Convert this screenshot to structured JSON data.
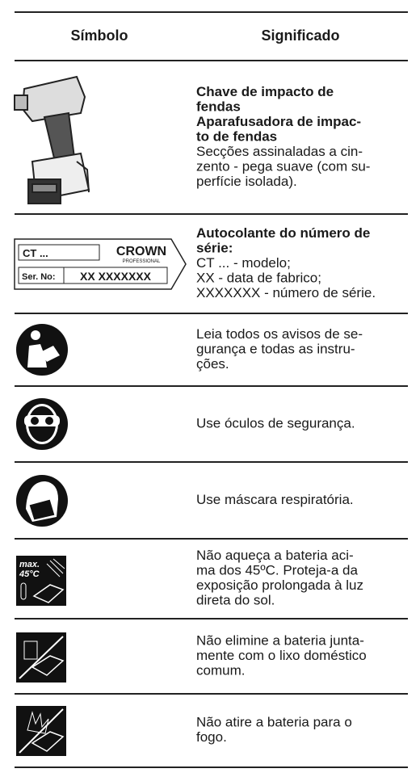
{
  "header": {
    "symbol": "Símbolo",
    "meaning": "Significado"
  },
  "rows": [
    {
      "bold_lines": [
        "Chave de impacto de",
        "fendas",
        "Aparafusadora de impac-",
        "to de fendas"
      ],
      "lines": [
        "Secções assinaladas a cin-",
        "zento - pega suave (com su-",
        "perfície isolada)."
      ]
    },
    {
      "label": {
        "model": "CT ...",
        "brand": "CROWN",
        "brand_sub": "PROFESSIONAL",
        "serial_label": "Ser. No:",
        "serial": "XX XXXXXXX"
      },
      "bold_lines": [
        "Autocolante do número de",
        "série:"
      ],
      "lines": [
        "CT ... - modelo;",
        "XX - data de fabrico;",
        "XXXXXXX - número de série."
      ]
    },
    {
      "lines": [
        "Leia todos os avisos de se-",
        "gurança e todas as instru-",
        "ções."
      ]
    },
    {
      "lines": [
        "Use óculos de segurança."
      ]
    },
    {
      "lines": [
        "Use máscara respiratória."
      ]
    },
    {
      "icon_text": [
        "max.",
        "45°C"
      ],
      "lines": [
        "Não aqueça a bateria aci-",
        "ma dos 45ºC. Proteja-a da",
        "exposição prolongada à luz",
        "direta do sol."
      ]
    },
    {
      "lines": [
        "Não elimine a bateria junta-",
        "mente com o lixo doméstico",
        "comum."
      ]
    },
    {
      "lines": [
        "Não atire a bateria para o",
        "fogo."
      ]
    }
  ]
}
